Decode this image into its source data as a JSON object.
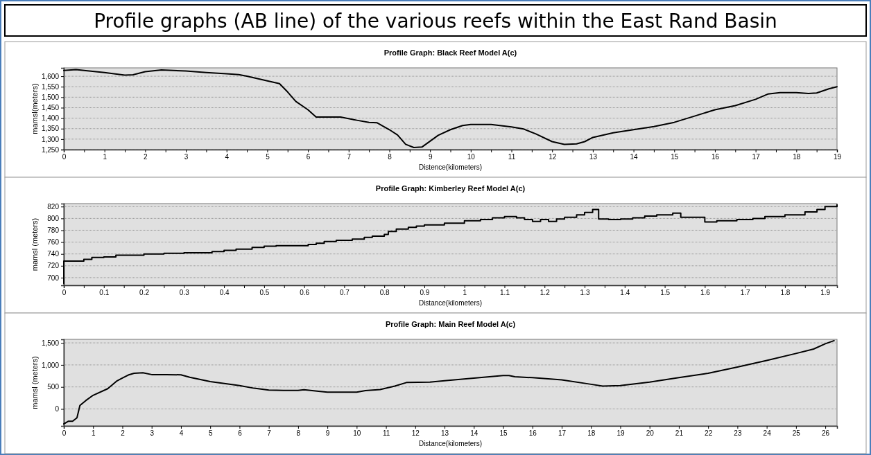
{
  "chart_data": [
    {
      "type": "other",
      "title": "Profile graphs (AB line) of the various reefs within the East Rand Basin"
    },
    {
      "type": "line",
      "title": "Profile Graph: Black Reef Model A(c)",
      "xlabel": "Distence(kilometers)",
      "ylabel": "mamsl(meters)",
      "color": "#000000",
      "grid": "y",
      "marker": "none",
      "line_style": "solid",
      "x": [
        0,
        0.3,
        0.5,
        1,
        1.5,
        1.7,
        2,
        2.4,
        3,
        3.5,
        4,
        4.3,
        4.5,
        5,
        5.3,
        5.5,
        5.7,
        6,
        6.2,
        6.8,
        7.2,
        7.5,
        7.7,
        8,
        8.2,
        8.4,
        8.6,
        8.8,
        9,
        9.2,
        9.5,
        9.8,
        10,
        10.5,
        11,
        11.3,
        11.6,
        12,
        12.3,
        12.6,
        12.8,
        13,
        13.5,
        14,
        14.5,
        15,
        15.5,
        16,
        16.5,
        17,
        17.3,
        17.6,
        18,
        18.3,
        18.5,
        18.8,
        19
      ],
      "values": [
        1628,
        1632,
        1628,
        1618,
        1605,
        1607,
        1622,
        1630,
        1625,
        1618,
        1612,
        1608,
        1600,
        1578,
        1565,
        1525,
        1480,
        1440,
        1405,
        1405,
        1390,
        1380,
        1378,
        1345,
        1320,
        1275,
        1260,
        1262,
        1290,
        1318,
        1345,
        1365,
        1370,
        1370,
        1358,
        1348,
        1325,
        1288,
        1275,
        1277,
        1288,
        1308,
        1330,
        1345,
        1360,
        1380,
        1410,
        1440,
        1460,
        1490,
        1515,
        1522,
        1522,
        1518,
        1520,
        1540,
        1550
      ],
      "xlim": [
        0,
        19
      ],
      "ylim": [
        1250,
        1640
      ],
      "xticks": [
        0,
        {
          "value": 0.5,
          "label": null
        },
        1,
        {
          "value": 1.5,
          "label": null
        },
        2,
        {
          "value": 2.5,
          "label": null
        },
        3,
        {
          "value": 3.5,
          "label": null
        },
        4,
        {
          "value": 4.5,
          "label": null
        },
        5,
        {
          "value": 5.5,
          "label": null
        },
        6,
        {
          "value": 6.5,
          "label": null
        },
        7,
        {
          "value": 7.5,
          "label": null
        },
        8,
        {
          "value": 8.5,
          "label": null
        },
        9,
        {
          "value": 9.5,
          "label": null
        },
        10,
        {
          "value": 10.5,
          "label": null
        },
        11,
        {
          "value": 11.5,
          "label": null
        },
        12,
        {
          "value": 12.5,
          "label": null
        },
        13,
        {
          "value": 13.5,
          "label": null
        },
        14,
        {
          "value": 14.5,
          "label": null
        },
        15,
        {
          "value": 15.5,
          "label": null
        },
        16,
        {
          "value": 16.5,
          "label": null
        },
        17,
        {
          "value": 17.5,
          "label": null
        },
        18,
        {
          "value": 18.5,
          "label": null
        },
        19
      ],
      "yticks": [
        {
          "value": 1250,
          "label": "1,250"
        },
        {
          "value": 1300,
          "label": "1,300"
        },
        {
          "value": 1350,
          "label": "1,350"
        },
        {
          "value": 1400,
          "label": "1,400"
        },
        {
          "value": 1450,
          "label": "1,450"
        },
        {
          "value": 1500,
          "label": "1,500"
        },
        {
          "value": 1550,
          "label": "1,550"
        },
        {
          "value": 1600,
          "label": "1,600"
        }
      ]
    },
    {
      "type": "step",
      "title": "Profile Graph: Kimberley Reef Model A(c)",
      "xlabel": "Distance(kilometers)",
      "ylabel": "mamsl (meters)",
      "color": "#000000",
      "grid": "y",
      "marker": "none",
      "line_style": "solid",
      "x": [
        0,
        0,
        0.05,
        0.07,
        0.1,
        0.13,
        0.2,
        0.25,
        0.3,
        0.37,
        0.4,
        0.43,
        0.47,
        0.5,
        0.53,
        0.61,
        0.63,
        0.65,
        0.68,
        0.72,
        0.75,
        0.77,
        0.8,
        0.81,
        0.83,
        0.86,
        0.88,
        0.9,
        0.95,
        1,
        1.04,
        1.07,
        1.1,
        1.13,
        1.15,
        1.17,
        1.19,
        1.21,
        1.23,
        1.25,
        1.28,
        1.3,
        1.32,
        1.335,
        1.36,
        1.39,
        1.42,
        1.45,
        1.48,
        1.52,
        1.54,
        1.6,
        1.63,
        1.68,
        1.72,
        1.75,
        1.8,
        1.85,
        1.88,
        1.9,
        1.93
      ],
      "values": [
        690,
        728,
        731,
        734,
        735,
        738,
        740,
        741,
        742,
        744,
        746,
        748,
        751,
        753,
        754,
        756,
        758,
        761,
        763,
        765,
        768,
        770,
        773,
        778,
        782,
        785,
        787,
        789,
        792,
        796,
        798,
        801,
        803,
        801,
        798,
        795,
        798,
        795,
        799,
        802,
        806,
        810,
        815,
        799,
        798,
        799,
        801,
        804,
        806,
        809,
        802,
        794,
        796,
        798,
        800,
        803,
        806,
        811,
        815,
        820,
        823
      ],
      "xlim": [
        0,
        1.93
      ],
      "ylim": [
        687,
        825
      ],
      "xticks": [
        0,
        {
          "value": 0.05,
          "label": null
        },
        0.1,
        {
          "value": 0.15,
          "label": null
        },
        0.2,
        {
          "value": 0.25,
          "label": null
        },
        0.3,
        {
          "value": 0.35,
          "label": null
        },
        0.4,
        {
          "value": 0.45,
          "label": null
        },
        0.5,
        {
          "value": 0.55,
          "label": null
        },
        0.6,
        {
          "value": 0.65,
          "label": null
        },
        0.7,
        {
          "value": 0.75,
          "label": null
        },
        0.8,
        {
          "value": 0.85,
          "label": null
        },
        0.9,
        {
          "value": 0.95,
          "label": null
        },
        1,
        {
          "value": 1.05,
          "label": null
        },
        1.1,
        {
          "value": 1.15,
          "label": null
        },
        1.2,
        {
          "value": 1.25,
          "label": null
        },
        1.3,
        {
          "value": 1.35,
          "label": null
        },
        1.4,
        {
          "value": 1.45,
          "label": null
        },
        1.5,
        {
          "value": 1.55,
          "label": null
        },
        1.6,
        {
          "value": 1.65,
          "label": null
        },
        1.7,
        {
          "value": 1.75,
          "label": null
        },
        1.8,
        {
          "value": 1.85,
          "label": null
        },
        1.9
      ],
      "yticks": [
        700,
        720,
        740,
        760,
        780,
        800,
        820
      ]
    },
    {
      "type": "line",
      "title": "Profile Graph: Main Reef Model A(c)",
      "xlabel": "Distance(kilometers)",
      "ylabel": "mamsl (meters)",
      "color": "#000000",
      "grid": "y",
      "marker": "none",
      "line_style": "solid",
      "x": [
        0,
        0.15,
        0.3,
        0.45,
        0.55,
        0.75,
        1,
        1.5,
        1.8,
        2,
        2.2,
        2.4,
        2.7,
        3,
        3.5,
        4,
        4.3,
        5,
        5.7,
        6,
        6.5,
        7,
        7.5,
        8,
        8.2,
        8.7,
        9,
        10,
        10.3,
        10.8,
        11.3,
        11.7,
        12.5,
        13,
        14,
        15,
        15.2,
        15.4,
        16,
        17,
        18,
        18.4,
        19,
        20,
        21,
        22,
        23,
        24,
        25,
        25.6,
        26,
        26.3
      ],
      "values": [
        -340,
        -280,
        -280,
        -200,
        80,
        190,
        310,
        460,
        630,
        700,
        770,
        810,
        820,
        780,
        780,
        775,
        720,
        620,
        560,
        530,
        470,
        430,
        420,
        420,
        435,
        400,
        380,
        380,
        415,
        440,
        520,
        600,
        610,
        640,
        700,
        760,
        760,
        730,
        710,
        660,
        560,
        520,
        530,
        610,
        710,
        810,
        950,
        1100,
        1260,
        1360,
        1480,
        1550
      ],
      "xlim": [
        0,
        26.4
      ],
      "ylim": [
        -385,
        1580
      ],
      "xticks": [
        0,
        1,
        2,
        3,
        4,
        5,
        6,
        7,
        8,
        9,
        10,
        11,
        12,
        13,
        14,
        15,
        16,
        17,
        18,
        19,
        20,
        21,
        22,
        23,
        24,
        25,
        26
      ],
      "yticks": [
        0,
        500,
        {
          "value": 1000,
          "label": "1,000"
        },
        {
          "value": 1500,
          "label": "1,500"
        }
      ]
    }
  ]
}
